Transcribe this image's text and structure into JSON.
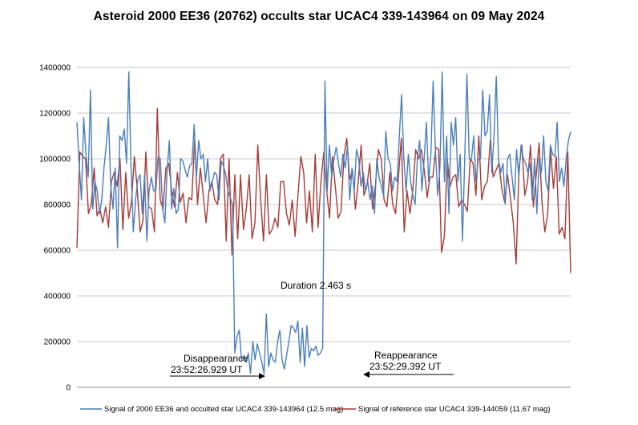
{
  "chart_data": {
    "type": "line",
    "title": "Asteroid 2000 EE36 (20762) occults star UCAC4 339-143964 on 09 May 2024",
    "xlabel": "",
    "ylabel": "",
    "ylim": [
      0,
      1400000
    ],
    "yticks": [
      0,
      200000,
      400000,
      600000,
      800000,
      1000000,
      1200000,
      1400000
    ],
    "ytick_labels": [
      "0",
      "200000",
      "400000",
      "600000",
      "800000",
      "1000000",
      "1200000",
      "1400000"
    ],
    "grid": "horizontal",
    "legend_placement": "bottom",
    "series": [
      {
        "name": "Signal of 2000 EE36 and occulted star UCAC4 339-143964 (12.5 mag)",
        "color": "#4a7ebb",
        "values": [
          1160000,
          980000,
          820000,
          1180000,
          1020000,
          920000,
          1300000,
          780000,
          900000,
          860000,
          760000,
          820000,
          960000,
          1060000,
          1180000,
          880000,
          780000,
          960000,
          610000,
          1100000,
          1080000,
          1130000,
          980000,
          1380000,
          960000,
          680000,
          820000,
          910000,
          930000,
          760000,
          930000,
          640000,
          860000,
          920000,
          860000,
          860000,
          1010000,
          1000000,
          780000,
          720000,
          950000,
          1080000,
          780000,
          870000,
          760000,
          780000,
          1000000,
          990000,
          950000,
          920000,
          970000,
          980000,
          1150000,
          920000,
          1080000,
          1000000,
          1020000,
          900000,
          1000000,
          860000,
          900000,
          940000,
          930000,
          820000,
          990000,
          970000,
          930000,
          860000,
          830000,
          800000,
          150000,
          220000,
          250000,
          120000,
          140000,
          110000,
          150000,
          60000,
          200000,
          120000,
          190000,
          150000,
          110000,
          60000,
          320000,
          90000,
          150000,
          120000,
          110000,
          200000,
          250000,
          120000,
          80000,
          140000,
          200000,
          270000,
          260000,
          240000,
          290000,
          110000,
          260000,
          90000,
          270000,
          130000,
          170000,
          160000,
          180000,
          140000,
          150000,
          170000,
          1340000,
          860000,
          1060000,
          920000,
          1000000,
          1050000,
          980000,
          920000,
          1020000,
          960000,
          1060000,
          820000,
          960000,
          860000,
          1040000,
          1000000,
          880000,
          940000,
          860000,
          900000,
          820000,
          880000,
          760000,
          1000000,
          920000,
          880000,
          840000,
          1120000,
          1000000,
          980000,
          860000,
          920000,
          900000,
          1100000,
          1280000,
          1000000,
          860000,
          1020000,
          900000,
          840000,
          800000,
          1000000,
          1080000,
          860000,
          1000000,
          1160000,
          900000,
          1020000,
          1340000,
          1040000,
          840000,
          960000,
          1380000,
          900000,
          1100000,
          760000,
          1160000,
          1060000,
          1180000,
          900000,
          1020000,
          640000,
          1000000,
          1370000,
          1000000,
          1000000,
          1100000,
          900000,
          1000000,
          1000000,
          1300000,
          1100000,
          1120000,
          1280000,
          940000,
          1100000,
          1360000,
          1000000,
          940000,
          980000,
          800000,
          1000000,
          1020000,
          920000,
          820000,
          1040000,
          920000,
          1060000,
          1000000,
          980000,
          940000,
          980000,
          820000,
          1000000,
          760000,
          1000000,
          940000,
          1100000,
          900000,
          860000,
          1060000,
          1020000,
          1010000,
          1160000,
          900000,
          960000,
          880000,
          1000000,
          1080000,
          1120000
        ]
      },
      {
        "name": "Signal of reference star UCAC4 339-144059 (11.67 mag)",
        "color": "#a53b36",
        "values": [
          610000,
          1030000,
          1010000,
          1000000,
          760000,
          800000,
          960000,
          750000,
          780000,
          720000,
          790000,
          700000,
          900000,
          940000,
          880000,
          1000000,
          690000,
          940000,
          740000,
          810000,
          1010000,
          870000,
          680000,
          730000,
          1030000,
          790000,
          780000,
          680000,
          1220000,
          820000,
          780000,
          960000,
          980000,
          860000,
          790000,
          940000,
          810000,
          850000,
          720000,
          830000,
          820000,
          1080000,
          800000,
          960000,
          840000,
          720000,
          860000,
          900000,
          820000,
          800000,
          1000000,
          1020000,
          640000,
          1000000,
          580000,
          930000,
          650000,
          930000,
          690000,
          780000,
          930000,
          650000,
          720000,
          1060000,
          820000,
          640000,
          930000,
          670000,
          690000,
          740000,
          700000,
          900000,
          900000,
          760000,
          710000,
          820000,
          660000,
          840000,
          1010000,
          940000,
          720000,
          860000,
          680000,
          1020000,
          700000,
          900000,
          1030000,
          860000,
          740000,
          1010000,
          880000,
          740000,
          770000,
          1010000,
          1090000,
          910000,
          950000,
          780000,
          900000,
          1060000,
          840000,
          880000,
          980000,
          780000,
          890000,
          1040000,
          1000000,
          820000,
          790000,
          940000,
          800000,
          760000,
          920000,
          1090000,
          680000,
          860000,
          760000,
          860000,
          1040000,
          1000000,
          1040000,
          950000,
          830000,
          920000,
          920000,
          1050000,
          1040000,
          590000,
          660000,
          1000000,
          880000,
          920000,
          930000,
          790000,
          820000,
          800000,
          770000,
          1000000,
          980000,
          840000,
          1100000,
          820000,
          880000,
          900000,
          1080000,
          920000,
          950000,
          980000,
          870000,
          810000,
          930000,
          830000,
          720000,
          540000,
          960000,
          1060000,
          840000,
          900000,
          1060000,
          790000,
          930000,
          1070000,
          810000,
          680000,
          760000,
          1040000,
          870000,
          1010000,
          670000,
          700000,
          650000,
          1030000,
          500000
        ]
      }
    ],
    "annotations": {
      "duration": "Duration 2.463 s",
      "disappearance_label": "Disappearance",
      "disappearance_time": "23:52:26.929 UT",
      "reappearance_label": "Reappearance",
      "reappearance_time": "23:52:29.392 UT"
    }
  }
}
